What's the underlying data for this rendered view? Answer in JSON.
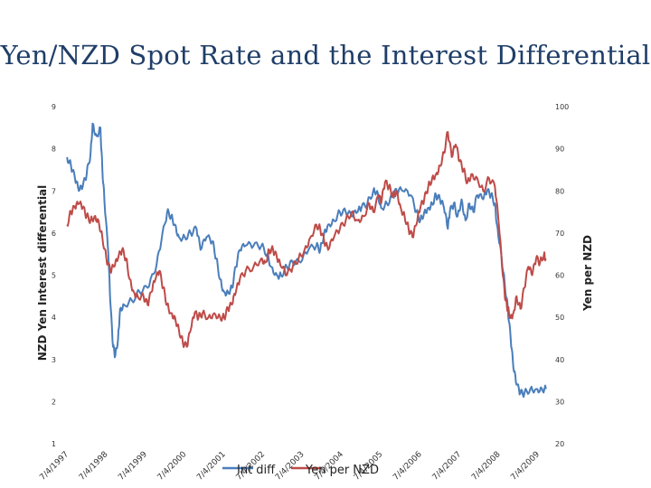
{
  "chart_data": {
    "type": "line",
    "title": "Yen/NZD Spot Rate and the Interest Differential",
    "y_left_label": "NZD Yen Interest differential",
    "y_right_label": "Yen per NZD",
    "y_left_range": [
      1,
      9
    ],
    "y_right_range": [
      20,
      100
    ],
    "y_left_ticks": [
      1,
      2,
      3,
      4,
      5,
      6,
      7,
      8,
      9
    ],
    "y_right_ticks": [
      20,
      30,
      40,
      50,
      60,
      70,
      80,
      90,
      100
    ],
    "x_range": [
      1997.5,
      2009.8
    ],
    "x_ticks": [
      {
        "label": "7/4/1997",
        "year": 1997.5
      },
      {
        "label": "7/4/1998",
        "year": 1998.5
      },
      {
        "label": "7/4/1999",
        "year": 1999.5
      },
      {
        "label": "7/4/2000",
        "year": 2000.5
      },
      {
        "label": "7/4/2001",
        "year": 2001.5
      },
      {
        "label": "7/4/2002",
        "year": 2002.5
      },
      {
        "label": "7/4/2003",
        "year": 2003.5
      },
      {
        "label": "7/4/2004",
        "year": 2004.5
      },
      {
        "label": "7/4/2005",
        "year": 2005.5
      },
      {
        "label": "7/4/2006",
        "year": 2006.5
      },
      {
        "label": "7/4/2007",
        "year": 2007.5
      },
      {
        "label": "7/4/2008",
        "year": 2008.5
      },
      {
        "label": "7/4/2009",
        "year": 2009.5
      }
    ],
    "grid": false,
    "legend_position": "bottom",
    "series": [
      {
        "name": "Int diff",
        "axis": "left",
        "color": "#4a7ebb",
        "points": [
          [
            1997.55,
            7.8
          ],
          [
            1997.65,
            7.6
          ],
          [
            1997.75,
            7.3
          ],
          [
            1997.85,
            7.0
          ],
          [
            1997.95,
            7.1
          ],
          [
            1998.05,
            7.4
          ],
          [
            1998.15,
            7.9
          ],
          [
            1998.2,
            8.6
          ],
          [
            1998.3,
            8.3
          ],
          [
            1998.4,
            8.5
          ],
          [
            1998.45,
            7.5
          ],
          [
            1998.5,
            6.8
          ],
          [
            1998.6,
            5.5
          ],
          [
            1998.65,
            4.4
          ],
          [
            1998.72,
            3.3
          ],
          [
            1998.78,
            3.1
          ],
          [
            1998.85,
            3.5
          ],
          [
            1998.9,
            4.2
          ],
          [
            1999.0,
            4.3
          ],
          [
            1999.2,
            4.4
          ],
          [
            1999.4,
            4.6
          ],
          [
            1999.6,
            4.7
          ],
          [
            1999.8,
            5.1
          ],
          [
            1999.95,
            5.8
          ],
          [
            2000.1,
            6.5
          ],
          [
            2000.2,
            6.4
          ],
          [
            2000.3,
            6.2
          ],
          [
            2000.4,
            5.9
          ],
          [
            2000.55,
            5.9
          ],
          [
            2000.7,
            6.0
          ],
          [
            2000.85,
            6.1
          ],
          [
            2000.95,
            5.6
          ],
          [
            2001.1,
            5.9
          ],
          [
            2001.25,
            5.8
          ],
          [
            2001.35,
            5.4
          ],
          [
            2001.45,
            4.9
          ],
          [
            2001.55,
            4.6
          ],
          [
            2001.65,
            4.6
          ],
          [
            2001.75,
            4.7
          ],
          [
            2001.85,
            5.2
          ],
          [
            2001.95,
            5.6
          ],
          [
            2002.1,
            5.7
          ],
          [
            2002.3,
            5.7
          ],
          [
            2002.5,
            5.7
          ],
          [
            2002.65,
            5.5
          ],
          [
            2002.75,
            5.2
          ],
          [
            2002.9,
            5.0
          ],
          [
            2003.0,
            5.0
          ],
          [
            2003.15,
            5.2
          ],
          [
            2003.3,
            5.3
          ],
          [
            2003.5,
            5.3
          ],
          [
            2003.7,
            5.6
          ],
          [
            2003.9,
            5.7
          ],
          [
            2004.0,
            5.6
          ],
          [
            2004.1,
            6.0
          ],
          [
            2004.2,
            6.2
          ],
          [
            2004.35,
            6.3
          ],
          [
            2004.5,
            6.5
          ],
          [
            2004.65,
            6.5
          ],
          [
            2004.8,
            6.4
          ],
          [
            2004.95,
            6.5
          ],
          [
            2005.05,
            6.6
          ],
          [
            2005.2,
            6.7
          ],
          [
            2005.35,
            7.0
          ],
          [
            2005.45,
            7.0
          ],
          [
            2005.55,
            6.6
          ],
          [
            2005.7,
            6.7
          ],
          [
            2005.85,
            6.9
          ],
          [
            2005.95,
            7.0
          ],
          [
            2006.1,
            7.0
          ],
          [
            2006.3,
            6.9
          ],
          [
            2006.45,
            6.5
          ],
          [
            2006.55,
            6.3
          ],
          [
            2006.65,
            6.5
          ],
          [
            2006.75,
            6.6
          ],
          [
            2006.85,
            6.7
          ],
          [
            2006.95,
            6.9
          ],
          [
            2007.05,
            6.8
          ],
          [
            2007.15,
            6.6
          ],
          [
            2007.25,
            6.1
          ],
          [
            2007.3,
            6.5
          ],
          [
            2007.4,
            6.7
          ],
          [
            2007.5,
            6.4
          ],
          [
            2007.6,
            6.8
          ],
          [
            2007.7,
            6.3
          ],
          [
            2007.8,
            6.7
          ],
          [
            2007.9,
            6.5
          ],
          [
            2008.0,
            6.9
          ],
          [
            2008.15,
            6.8
          ],
          [
            2008.25,
            7.0
          ],
          [
            2008.35,
            6.9
          ],
          [
            2008.45,
            6.7
          ],
          [
            2008.5,
            6.2
          ],
          [
            2008.6,
            5.6
          ],
          [
            2008.7,
            4.8
          ],
          [
            2008.78,
            4.2
          ],
          [
            2008.85,
            3.5
          ],
          [
            2008.92,
            2.8
          ],
          [
            2009.0,
            2.4
          ],
          [
            2009.1,
            2.2
          ],
          [
            2009.2,
            2.2
          ],
          [
            2009.35,
            2.3
          ],
          [
            2009.5,
            2.3
          ],
          [
            2009.65,
            2.3
          ],
          [
            2009.75,
            2.3
          ]
        ]
      },
      {
        "name": "Yen per NZD",
        "axis": "right",
        "color": "#be4b48",
        "points": [
          [
            1997.55,
            72
          ],
          [
            1997.65,
            75
          ],
          [
            1997.75,
            76
          ],
          [
            1997.85,
            77
          ],
          [
            1997.95,
            76
          ],
          [
            1998.05,
            74
          ],
          [
            1998.15,
            73
          ],
          [
            1998.25,
            74
          ],
          [
            1998.35,
            73
          ],
          [
            1998.45,
            69
          ],
          [
            1998.55,
            64
          ],
          [
            1998.65,
            61
          ],
          [
            1998.75,
            62
          ],
          [
            1998.85,
            64
          ],
          [
            1998.95,
            66
          ],
          [
            1999.05,
            64
          ],
          [
            1999.15,
            59
          ],
          [
            1999.25,
            56
          ],
          [
            1999.35,
            55
          ],
          [
            1999.5,
            55
          ],
          [
            1999.6,
            53
          ],
          [
            1999.7,
            56
          ],
          [
            1999.8,
            59
          ],
          [
            1999.9,
            61
          ],
          [
            2000.0,
            57
          ],
          [
            2000.1,
            53
          ],
          [
            2000.2,
            51
          ],
          [
            2000.3,
            50
          ],
          [
            2000.4,
            47
          ],
          [
            2000.5,
            44
          ],
          [
            2000.6,
            43
          ],
          [
            2000.7,
            47
          ],
          [
            2000.8,
            51
          ],
          [
            2000.9,
            50
          ],
          [
            2001.0,
            51
          ],
          [
            2001.15,
            50
          ],
          [
            2001.3,
            51
          ],
          [
            2001.45,
            50
          ],
          [
            2001.55,
            50
          ],
          [
            2001.65,
            52
          ],
          [
            2001.75,
            53
          ],
          [
            2001.85,
            56
          ],
          [
            2001.95,
            59
          ],
          [
            2002.1,
            61
          ],
          [
            2002.3,
            62
          ],
          [
            2002.5,
            64
          ],
          [
            2002.6,
            63
          ],
          [
            2002.7,
            66
          ],
          [
            2002.8,
            66
          ],
          [
            2002.9,
            64
          ],
          [
            2003.0,
            62
          ],
          [
            2003.15,
            60
          ],
          [
            2003.3,
            62
          ],
          [
            2003.45,
            64
          ],
          [
            2003.6,
            66
          ],
          [
            2003.75,
            69
          ],
          [
            2003.9,
            72
          ],
          [
            2004.0,
            71
          ],
          [
            2004.1,
            68
          ],
          [
            2004.2,
            66
          ],
          [
            2004.35,
            69
          ],
          [
            2004.5,
            71
          ],
          [
            2004.65,
            73
          ],
          [
            2004.8,
            75
          ],
          [
            2004.95,
            73
          ],
          [
            2005.1,
            74
          ],
          [
            2005.25,
            77
          ],
          [
            2005.35,
            75
          ],
          [
            2005.5,
            79
          ],
          [
            2005.55,
            77
          ],
          [
            2005.65,
            82
          ],
          [
            2005.75,
            81
          ],
          [
            2005.85,
            79
          ],
          [
            2005.95,
            80
          ],
          [
            2006.05,
            76
          ],
          [
            2006.15,
            74
          ],
          [
            2006.25,
            71
          ],
          [
            2006.35,
            69
          ],
          [
            2006.45,
            72
          ],
          [
            2006.55,
            76
          ],
          [
            2006.65,
            78
          ],
          [
            2006.75,
            81
          ],
          [
            2006.85,
            83
          ],
          [
            2006.95,
            84
          ],
          [
            2007.05,
            86
          ],
          [
            2007.15,
            89
          ],
          [
            2007.25,
            94
          ],
          [
            2007.35,
            88
          ],
          [
            2007.45,
            91
          ],
          [
            2007.55,
            87
          ],
          [
            2007.65,
            85
          ],
          [
            2007.75,
            82
          ],
          [
            2007.85,
            84
          ],
          [
            2008.0,
            83
          ],
          [
            2008.15,
            80
          ],
          [
            2008.3,
            83
          ],
          [
            2008.45,
            81
          ],
          [
            2008.55,
            72
          ],
          [
            2008.65,
            60
          ],
          [
            2008.72,
            54
          ],
          [
            2008.78,
            52
          ],
          [
            2008.85,
            50
          ],
          [
            2008.92,
            51
          ],
          [
            2009.0,
            55
          ],
          [
            2009.1,
            52
          ],
          [
            2009.2,
            57
          ],
          [
            2009.3,
            62
          ],
          [
            2009.4,
            60
          ],
          [
            2009.5,
            64
          ],
          [
            2009.6,
            63
          ],
          [
            2009.7,
            65
          ],
          [
            2009.75,
            64
          ]
        ]
      }
    ]
  }
}
